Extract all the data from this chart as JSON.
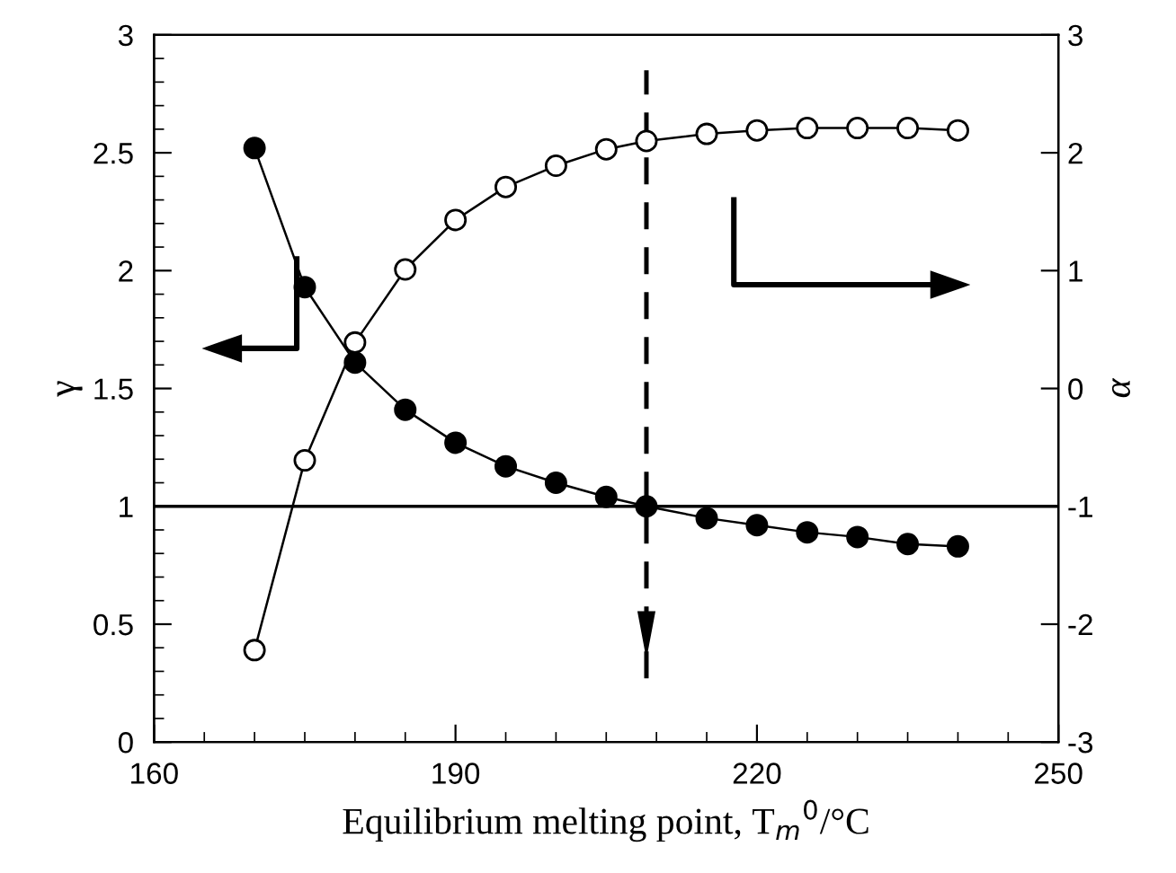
{
  "chart_data": {
    "type": "line",
    "xlabel": "Equilibrium melting point, T$_{m}$$^{0}$/°C",
    "ylabel": "γ",
    "y2label": "α",
    "x": [
      170,
      175,
      180,
      185,
      190,
      195,
      200,
      205,
      209,
      215,
      220,
      225,
      230,
      235,
      240
    ],
    "series": [
      {
        "color": "#000000",
        "values": [
          2.52,
          1.93,
          1.61,
          1.41,
          1.27,
          1.17,
          1.1,
          1.04,
          1.0,
          0.95,
          0.92,
          0.89,
          0.87,
          0.84,
          0.83
        ]
      },
      {
        "color": "#000000",
        "axis": "y2",
        "values": [
          -2.22,
          -0.61,
          0.39,
          1.01,
          1.43,
          1.71,
          1.89,
          2.03,
          2.1,
          2.16,
          2.19,
          2.21,
          2.21,
          2.21,
          2.19
        ]
      }
    ],
    "xlim": [
      160,
      250
    ],
    "xticks": [
      160,
      190,
      220,
      250
    ],
    "ylim": [
      0,
      3
    ],
    "yticks": [
      0,
      0.5,
      1,
      1.5,
      2,
      2.5,
      3
    ],
    "y2lim": [
      -3,
      3
    ],
    "y2ticks": [
      -3,
      -2,
      -1,
      0,
      1,
      2,
      3
    ],
    "ref_lines": [
      {
        "axis": "y",
        "value": 1,
        "color": "#000000",
        "line_style": "solid"
      },
      {
        "axis": "x",
        "value": 209,
        "color": "#000000",
        "line_style": "dashed"
      }
    ],
    "marker": "circle",
    "line_style": "solid",
    "grid": false,
    "legend": false
  }
}
